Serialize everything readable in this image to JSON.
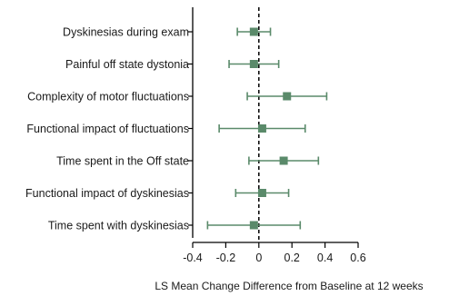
{
  "chart_data": {
    "type": "scatter",
    "subtype": "forest-plot",
    "title": "",
    "xlabel": "LS Mean Change Difference from Baseline at 12 weeks",
    "ylabel": "",
    "xlim": [
      -0.4,
      0.6
    ],
    "xticks": [
      "-0.4",
      "-0.2",
      "0",
      "0.2",
      "0.4",
      "0.6"
    ],
    "reference_line": 0,
    "grid": false,
    "marker_color": "#5a8a6a",
    "categories": [
      "Dyskinesias during exam",
      "Painful off state dystonia",
      "Complexity of motor fluctuations",
      "Functional impact of fluctuations",
      "Time spent in the Off state",
      "Functional impact of dyskinesias",
      "Time spent with dyskinesias"
    ],
    "points": [
      {
        "estimate": -0.03,
        "lower": -0.13,
        "upper": 0.07
      },
      {
        "estimate": -0.03,
        "lower": -0.18,
        "upper": 0.12
      },
      {
        "estimate": 0.17,
        "lower": -0.07,
        "upper": 0.41
      },
      {
        "estimate": 0.02,
        "lower": -0.24,
        "upper": 0.28
      },
      {
        "estimate": 0.15,
        "lower": -0.06,
        "upper": 0.36
      },
      {
        "estimate": 0.02,
        "lower": -0.14,
        "upper": 0.18
      },
      {
        "estimate": -0.03,
        "lower": -0.31,
        "upper": 0.25
      }
    ]
  }
}
